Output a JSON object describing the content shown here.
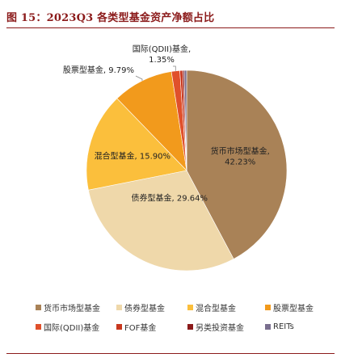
{
  "figure_title": "图 15：2023Q3 各类型基金资产净额占比",
  "chart_data": {
    "type": "pie",
    "title": "",
    "start_angle_deg": 0,
    "direction": "clockwise",
    "series": [
      {
        "name": "货币市场型基金",
        "value": 42.23,
        "label": "货币市场型基金,\n42.23%",
        "color": "#a98257"
      },
      {
        "name": "债券型基金",
        "value": 29.64,
        "label": "债券型基金, 29.64%",
        "color": "#efd8aa"
      },
      {
        "name": "混合型基金",
        "value": 15.9,
        "label": "混合型基金, 15.90%",
        "color": "#fbbf3c"
      },
      {
        "name": "股票型基金",
        "value": 9.79,
        "label": "股票型基金, 9.79%",
        "color": "#f29a1c"
      },
      {
        "name": "国际(QDII)基金",
        "value": 1.35,
        "label": "国际(QDII)基金,\n1.35%",
        "color": "#e0502b"
      },
      {
        "name": "FOF基金",
        "value": 0.45,
        "label": "",
        "color": "#c8371e"
      },
      {
        "name": "另类投资基金",
        "value": 0.25,
        "label": "",
        "color": "#8b1a1a"
      },
      {
        "name": "REITs",
        "value": 0.39,
        "label": "",
        "color": "#7a6f8f"
      }
    ],
    "legend": {
      "placement": "bottom",
      "items": [
        "货币市场型基金",
        "债券型基金",
        "混合型基金",
        "股票型基金",
        "国际(QDII)基金",
        "FOF基金",
        "另类投资基金",
        "REITs"
      ]
    }
  }
}
